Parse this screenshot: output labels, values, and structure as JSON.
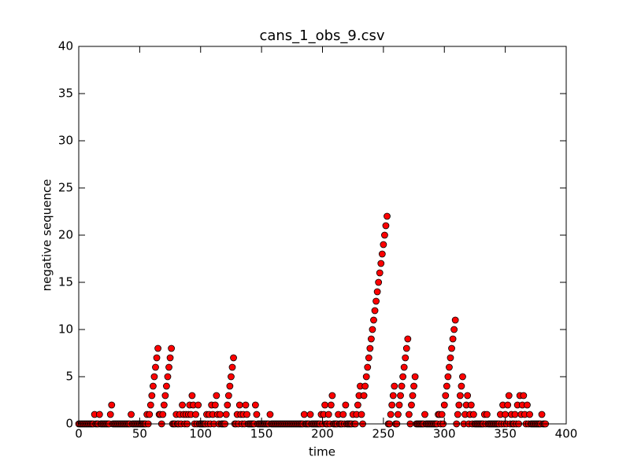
{
  "chart_data": {
    "type": "scatter",
    "title": "cans_1_obs_9.csv",
    "x_label": "time",
    "y_label": "negative sequence",
    "xlim": [
      0,
      400
    ],
    "xticks": [
      0,
      50,
      100,
      150,
      200,
      250,
      300,
      350,
      400
    ],
    "ylim": [
      0,
      40
    ],
    "yticks": [
      0,
      5,
      10,
      15,
      20,
      25,
      30,
      35,
      40
    ],
    "color": "#ff0000",
    "x": [
      0,
      1,
      2,
      3,
      4,
      5,
      6,
      7,
      8,
      9,
      10,
      11,
      12,
      13,
      14,
      15,
      16,
      17,
      18,
      19,
      20,
      21,
      22,
      23,
      24,
      25,
      26,
      27,
      28,
      29,
      30,
      31,
      32,
      33,
      34,
      35,
      36,
      37,
      38,
      39,
      40,
      41,
      42,
      43,
      44,
      45,
      46,
      47,
      48,
      49,
      50,
      51,
      52,
      53,
      54,
      55,
      56,
      57,
      58,
      59,
      60,
      61,
      62,
      63,
      64,
      65,
      66,
      67,
      68,
      69,
      70,
      71,
      72,
      73,
      74,
      75,
      76,
      77,
      78,
      79,
      80,
      81,
      82,
      83,
      84,
      85,
      86,
      87,
      88,
      89,
      90,
      91,
      92,
      93,
      94,
      95,
      96,
      97,
      98,
      99,
      100,
      101,
      102,
      103,
      104,
      105,
      106,
      107,
      108,
      109,
      110,
      111,
      112,
      113,
      114,
      115,
      116,
      117,
      118,
      119,
      120,
      121,
      122,
      123,
      124,
      125,
      126,
      127,
      128,
      129,
      130,
      131,
      132,
      133,
      134,
      135,
      136,
      137,
      138,
      139,
      140,
      141,
      142,
      143,
      144,
      145,
      146,
      147,
      148,
      149,
      150,
      151,
      152,
      153,
      154,
      155,
      156,
      157,
      158,
      159,
      160,
      161,
      162,
      163,
      164,
      165,
      166,
      167,
      168,
      169,
      170,
      171,
      172,
      173,
      174,
      175,
      176,
      177,
      178,
      179,
      180,
      181,
      182,
      183,
      184,
      185,
      186,
      187,
      188,
      189,
      190,
      191,
      192,
      193,
      194,
      195,
      196,
      197,
      198,
      199,
      200,
      201,
      202,
      203,
      204,
      205,
      206,
      207,
      208,
      209,
      210,
      211,
      212,
      213,
      214,
      215,
      216,
      217,
      218,
      219,
      220,
      221,
      222,
      223,
      224,
      225,
      226,
      227,
      228,
      229,
      230,
      231,
      232,
      233,
      234,
      235,
      236,
      237,
      238,
      239,
      240,
      241,
      242,
      243,
      244,
      245,
      246,
      247,
      248,
      249,
      250,
      251,
      252,
      253,
      254,
      255,
      256,
      257,
      258,
      259,
      260,
      261,
      262,
      263,
      264,
      265,
      266,
      267,
      268,
      269,
      270,
      271,
      272,
      273,
      274,
      275,
      276,
      277,
      278,
      279,
      280,
      281,
      282,
      283,
      284,
      285,
      286,
      287,
      288,
      289,
      290,
      291,
      292,
      293,
      294,
      295,
      296,
      297,
      298,
      299,
      300,
      301,
      302,
      303,
      304,
      305,
      306,
      307,
      308,
      309,
      310,
      311,
      312,
      313,
      314,
      315,
      316,
      317,
      318,
      319,
      320,
      321,
      322,
      323,
      324,
      325,
      326,
      327,
      328,
      329,
      330,
      331,
      332,
      333,
      334,
      335,
      336,
      337,
      338,
      339,
      340,
      341,
      342,
      343,
      344,
      345,
      346,
      347,
      348,
      349,
      350,
      351,
      352,
      353,
      354,
      355,
      356,
      357,
      358,
      359,
      360,
      361,
      362,
      363,
      364,
      365,
      366,
      367,
      368,
      369,
      370,
      371,
      372,
      373,
      374,
      375,
      376,
      377,
      378,
      379,
      380,
      381,
      382,
      383
    ],
    "y": [
      0,
      0,
      0,
      0,
      0,
      0,
      0,
      0,
      0,
      0,
      0,
      0,
      0,
      1,
      0,
      0,
      0,
      1,
      0,
      0,
      0,
      0,
      0,
      0,
      0,
      0,
      1,
      2,
      0,
      0,
      0,
      0,
      0,
      0,
      0,
      0,
      0,
      0,
      0,
      0,
      0,
      0,
      0,
      1,
      0,
      0,
      0,
      0,
      0,
      0,
      0,
      0,
      0,
      0,
      0,
      0,
      1,
      0,
      1,
      2,
      3,
      4,
      5,
      6,
      7,
      8,
      1,
      1,
      0,
      1,
      2,
      3,
      4,
      5,
      6,
      7,
      8,
      0,
      0,
      0,
      1,
      0,
      0,
      1,
      0,
      2,
      1,
      0,
      1,
      0,
      1,
      2,
      1,
      3,
      2,
      0,
      1,
      0,
      2,
      0,
      0,
      0,
      0,
      0,
      0,
      1,
      0,
      1,
      0,
      2,
      1,
      0,
      2,
      3,
      1,
      0,
      1,
      0,
      0,
      0,
      0,
      1,
      2,
      3,
      4,
      5,
      6,
      7,
      0,
      0,
      1,
      0,
      2,
      1,
      0,
      1,
      0,
      2,
      1,
      0,
      0,
      0,
      0,
      0,
      0,
      2,
      1,
      0,
      0,
      0,
      0,
      0,
      0,
      0,
      0,
      0,
      0,
      1,
      0,
      0,
      0,
      0,
      0,
      0,
      0,
      0,
      0,
      0,
      0,
      0,
      0,
      0,
      0,
      0,
      0,
      0,
      0,
      0,
      0,
      0,
      0,
      0,
      0,
      0,
      0,
      1,
      0,
      0,
      0,
      0,
      1,
      0,
      0,
      0,
      0,
      0,
      0,
      0,
      0,
      1,
      0,
      1,
      2,
      0,
      0,
      1,
      0,
      2,
      3,
      0,
      0,
      0,
      0,
      1,
      0,
      0,
      0,
      1,
      0,
      2,
      0,
      0,
      0,
      0,
      0,
      1,
      0,
      0,
      1,
      2,
      3,
      4,
      1,
      0,
      3,
      4,
      5,
      6,
      7,
      8,
      9,
      10,
      11,
      12,
      13,
      14,
      15,
      16,
      17,
      18,
      19,
      20,
      21,
      22,
      0,
      0,
      1,
      2,
      3,
      4,
      0,
      0,
      1,
      2,
      3,
      4,
      5,
      6,
      7,
      8,
      9,
      1,
      0,
      2,
      3,
      4,
      5,
      0,
      0,
      0,
      0,
      0,
      0,
      0,
      1,
      0,
      0,
      0,
      0,
      0,
      0,
      0,
      0,
      0,
      0,
      1,
      1,
      0,
      1,
      0,
      2,
      3,
      4,
      5,
      6,
      7,
      8,
      9,
      10,
      11,
      0,
      1,
      2,
      3,
      4,
      5,
      0,
      1,
      2,
      3,
      0,
      1,
      2,
      0,
      1,
      0,
      0,
      0,
      0,
      0,
      0,
      0,
      0,
      1,
      0,
      1,
      0,
      0,
      0,
      0,
      0,
      0,
      0,
      0,
      0,
      0,
      1,
      0,
      2,
      0,
      1,
      0,
      2,
      3,
      0,
      1,
      0,
      0,
      1,
      0,
      2,
      0,
      3,
      1,
      2,
      3,
      1,
      0,
      2,
      0,
      1,
      0,
      0,
      0,
      0,
      0,
      0,
      0,
      0,
      0,
      1,
      0,
      0,
      0
    ]
  }
}
